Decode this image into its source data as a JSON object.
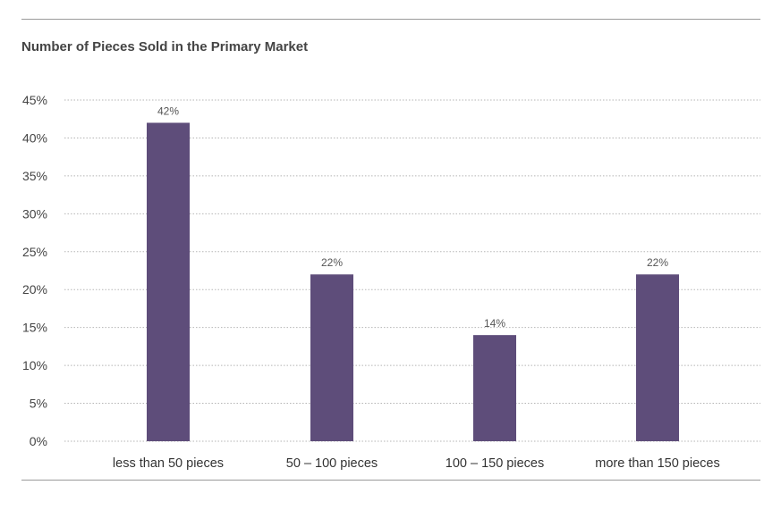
{
  "chart_data": {
    "type": "bar",
    "title": "Number of Pieces Sold in the Primary Market",
    "categories": [
      "less than 50 pieces",
      "50 – 100 pieces",
      "100 – 150 pieces",
      "more than 150 pieces"
    ],
    "values": [
      42,
      22,
      14,
      22
    ],
    "data_labels": [
      "42%",
      "22%",
      "14%",
      "22%"
    ],
    "y_ticks": [
      0,
      5,
      10,
      15,
      20,
      25,
      30,
      35,
      40,
      45
    ],
    "y_tick_labels": [
      "0%",
      "5%",
      "10%",
      "15%",
      "20%",
      "25%",
      "30%",
      "35%",
      "40%",
      "45%"
    ],
    "ylim": [
      0,
      45
    ],
    "xlabel": "",
    "ylabel": "",
    "grid": true,
    "grid_style": "dotted",
    "legend": "none",
    "bar_color": "#5e4d7a"
  }
}
